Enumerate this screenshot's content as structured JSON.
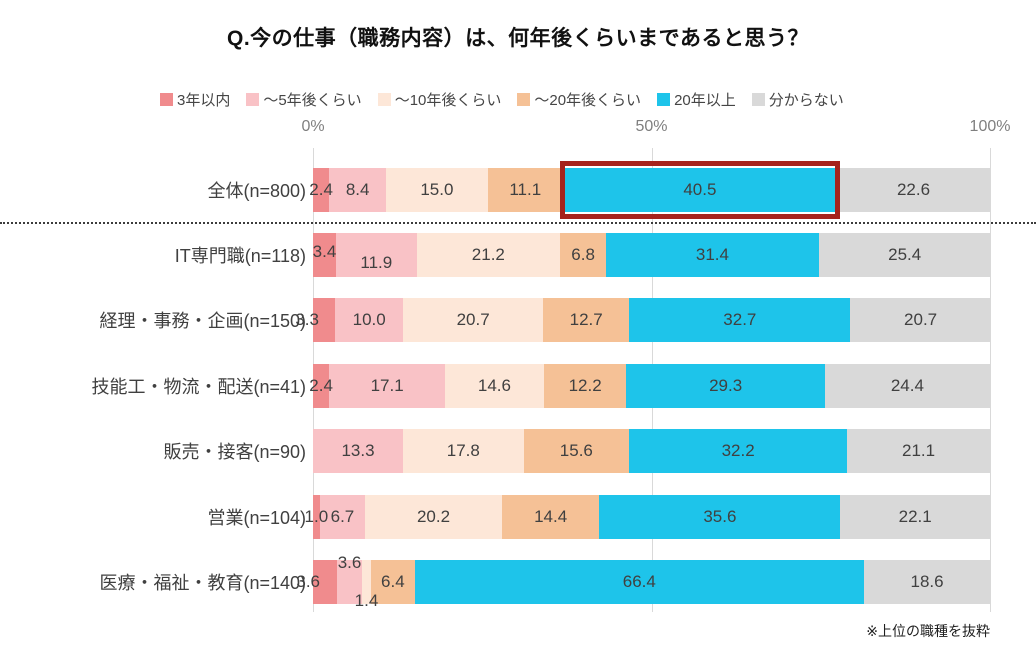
{
  "title": "Q.今の仕事（職務内容）は、何年後くらいまであると思う？",
  "note": "※上位の職種を抜粋",
  "axis_ticks": [
    "0%",
    "50%",
    "100%"
  ],
  "legend": [
    "3年以内",
    "～5年後くらい",
    "～10年後くらい",
    "～20年後くらい",
    "20年以上",
    "分からない"
  ],
  "colors": {
    "series": [
      "#f08b8d",
      "#f9c2c6",
      "#fde7d8",
      "#f5c196",
      "#1ec4ea",
      "#d9d9d9"
    ],
    "highlight_border": "#a6231d",
    "gridline": "#d9d9d9",
    "value_text": "#404040",
    "axis_text": "#7f7f7f"
  },
  "chart_data": {
    "type": "bar",
    "stacked": true,
    "orientation": "horizontal",
    "title": "Q.今の仕事（職務内容）は、何年後くらいまであると思う？",
    "xlabel": "",
    "ylabel": "",
    "xlim": [
      0,
      100
    ],
    "grid": "vertical-ticks-only",
    "legend_position": "top",
    "categories": [
      "全体(n=800)",
      "IT専門職(n=118)",
      "経理・事務・企画(n=150)",
      "技能工・物流・配送(n=41)",
      "販売・接客(n=90)",
      "営業(n=104)",
      "医療・福祉・教育(n=140)"
    ],
    "series": [
      {
        "name": "3年以内",
        "values": [
          2.4,
          3.4,
          3.3,
          2.4,
          0,
          1.0,
          3.6
        ]
      },
      {
        "name": "～5年後くらい",
        "values": [
          8.4,
          11.9,
          10.0,
          17.1,
          13.3,
          6.7,
          3.6
        ]
      },
      {
        "name": "～10年後くらい",
        "values": [
          15.0,
          21.2,
          20.7,
          14.6,
          17.8,
          20.2,
          1.4
        ]
      },
      {
        "name": "～20年後くらい",
        "values": [
          11.1,
          6.8,
          12.7,
          12.2,
          15.6,
          14.4,
          6.4
        ]
      },
      {
        "name": "20年以上",
        "values": [
          40.5,
          31.4,
          32.7,
          29.3,
          32.2,
          35.6,
          66.4
        ]
      },
      {
        "name": "分からない",
        "values": [
          22.6,
          25.4,
          20.7,
          24.4,
          21.1,
          22.1,
          18.6
        ]
      }
    ],
    "highlight": {
      "category": "全体(n=800)",
      "series": "20年以上",
      "value": 40.5
    }
  }
}
